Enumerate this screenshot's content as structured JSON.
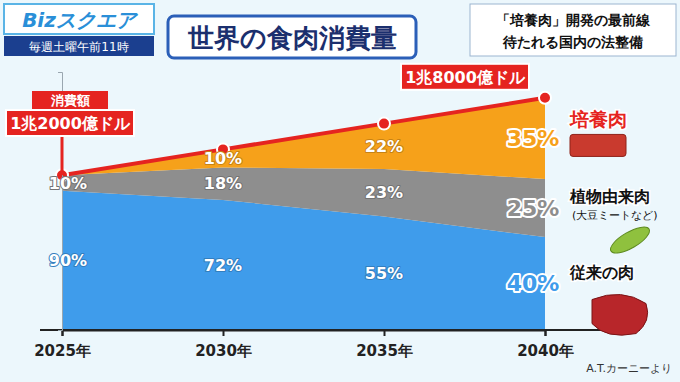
{
  "chart_data": {
    "type": "area",
    "title": "世界の食肉消費量",
    "stacked": true,
    "data_labels": true,
    "tick_labels": "x",
    "grid": false,
    "annotations": {
      "program": "Bizスクエア",
      "schedule": "毎週土曜午前11時",
      "headline": [
        "「培養肉」開発の最前線",
        "待たれる国内の法整備"
      ],
      "plant_note": "(大豆ミートなど)",
      "source": "A.T.カーニーより"
    },
    "categories": [
      "2025年",
      "2030年",
      "2035年",
      "2040年"
    ],
    "ylim": [
      0,
      20000
    ],
    "yticks": [
      0
    ],
    "series": [
      {
        "name": "従来の肉",
        "color": "#3f9ceb",
        "values": [
          90,
          72,
          55,
          40
        ],
        "value_labels": [
          "90%",
          "72%",
          "55%",
          "40%"
        ]
      },
      {
        "name": "植物由来肉",
        "color": "#8e8e8e",
        "values": [
          10,
          18,
          23,
          25
        ],
        "value_labels": [
          "10%",
          "18%",
          "23%",
          "25%"
        ]
      },
      {
        "name": "培養肉",
        "color": "#f6a11a",
        "values": [
          0,
          10,
          22,
          35
        ],
        "value_labels": [
          null,
          "10%",
          "22%",
          "35%"
        ]
      },
      {
        "name": "消費額",
        "type": "line",
        "color": "#e52420",
        "marker": "circle",
        "values": [
          12000,
          14000,
          16000,
          18000
        ],
        "value_labels": [
          "1兆2000億ドル",
          null,
          null,
          "1兆8000億ドル"
        ]
      }
    ]
  }
}
